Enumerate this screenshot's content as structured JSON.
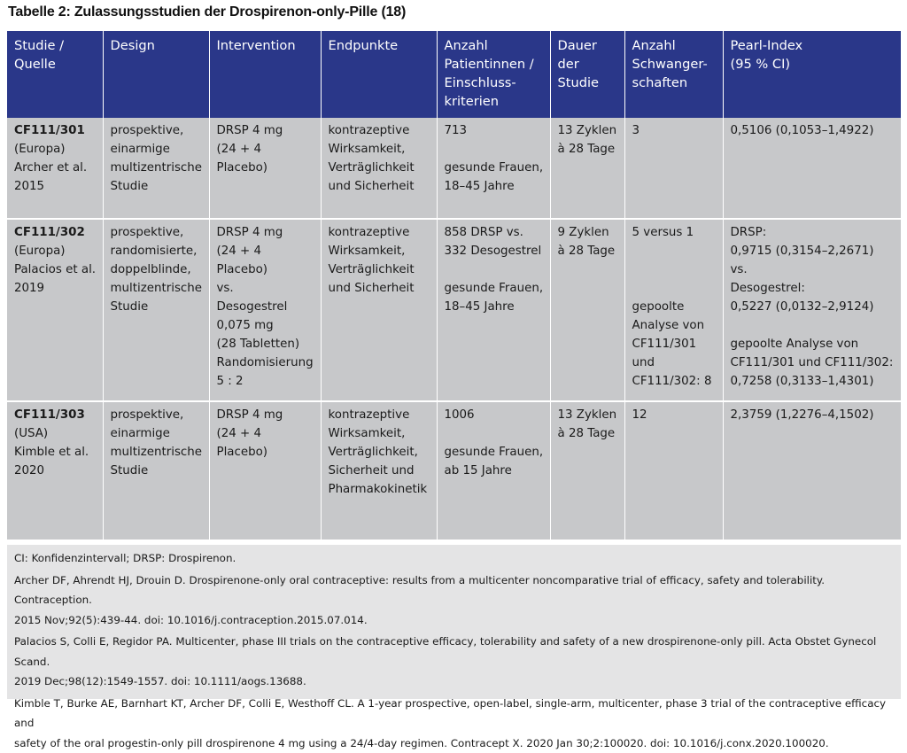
{
  "title": "Tabelle 2: Zulassungsstudien der Drospirenon-only-Pille (18)",
  "headers": {
    "c1": [
      "Studie /",
      "Quelle"
    ],
    "c2": [
      "Design"
    ],
    "c3": [
      "Intervention"
    ],
    "c4": [
      "Endpunkte"
    ],
    "c5": [
      "Anzahl",
      "Patientinnen /",
      "Einschluss-",
      "kriterien"
    ],
    "c6": [
      "Dauer",
      "der",
      "Studie"
    ],
    "c7": [
      "Anzahl",
      "Schwanger-",
      "schaften"
    ],
    "c8": [
      "Pearl-Index",
      "(95 % CI)"
    ]
  },
  "rows": [
    {
      "study_id": "CF111/301",
      "region": "(Europa)",
      "authors": "Archer et al.",
      "year": "2015",
      "design": [
        "prospektive,",
        "einarmige",
        "multizentrische",
        "Studie"
      ],
      "intervention": [
        "DRSP 4 mg",
        "(24 + 4 Placebo)"
      ],
      "endpoints": [
        "kontrazeptive",
        "Wirksamkeit,",
        "Verträglichkeit",
        "und Sicherheit"
      ],
      "patients_n": "713",
      "patients_criteria": [
        "gesunde Frauen,",
        "18–45 Jahre"
      ],
      "duration": [
        "13 Zyklen",
        "à 28 Tage"
      ],
      "pregnancies": "3",
      "pearl": "0,5106 (0,1053–1,4922)"
    },
    {
      "study_id": "CF111/302",
      "region": "(Europa)",
      "authors": "Palacios et al.",
      "year": "2019",
      "design": [
        "prospektive,",
        "randomisierte,",
        "doppelblinde,",
        "multizentrische",
        "Studie"
      ],
      "intervention": [
        "DRSP 4 mg",
        "(24 + 4 Placebo)",
        "vs.",
        "Desogestrel",
        "0,075 mg",
        "(28 Tabletten)",
        "Randomisierung",
        "5 : 2"
      ],
      "endpoints": [
        "kontrazeptive",
        "Wirksamkeit,",
        "Verträglichkeit",
        "und Sicherheit"
      ],
      "patients_n": [
        "858 DRSP vs.",
        "332 Desogestrel"
      ],
      "patients_criteria": [
        "gesunde Frauen,",
        "18–45 Jahre"
      ],
      "duration": [
        "9 Zyklen",
        "à 28 Tage"
      ],
      "pregnancies": "5 versus 1",
      "pregnancies_pooled": [
        "gepoolte",
        "Analyse von",
        "CF111/301",
        "und",
        "CF111/302: 8"
      ],
      "pearl": [
        "DRSP:",
        "0,9715 (0,3154–2,2671)",
        "vs.",
        "Desogestrel:",
        "0,5227 (0,0132–2,9124)"
      ],
      "pearl_pooled": [
        "gepoolte Analyse von",
        "CF111/301 und CF111/302:",
        "0,7258 (0,3133–1,4301)"
      ]
    },
    {
      "study_id": "CF111/303",
      "region": "(USA)",
      "authors": "Kimble et al.",
      "year": "2020",
      "design": [
        "prospektive,",
        "einarmige",
        "multizentrische",
        "Studie"
      ],
      "intervention": [
        "DRSP 4 mg",
        "(24 + 4 Placebo)"
      ],
      "endpoints": [
        "kontrazeptive",
        "Wirksamkeit,",
        "Verträglichkeit,",
        "Sicherheit und",
        "Pharmakokinetik"
      ],
      "patients_n": "1006",
      "patients_criteria": [
        "gesunde Frauen,",
        "ab 15 Jahre"
      ],
      "duration": [
        "13 Zyklen",
        "à 28 Tage"
      ],
      "pregnancies": "12",
      "pearl": "2,3759 (1,2276–4,1502)"
    }
  ],
  "footnotes": {
    "abbrev": "CI: Konfidenzintervall; DRSP: Drospirenon.",
    "ref1": [
      "Archer DF, Ahrendt HJ, Drouin D. Drospirenone-only oral contraceptive: results from a multicenter noncomparative trial of efficacy, safety and tolerability. Contraception.",
      "2015 Nov;92(5):439-44. doi: 10.1016/j.contraception.2015.07.014."
    ],
    "ref2": [
      "Palacios S, Colli E, Regidor PA. Multicenter, phase III trials on the contraceptive efficacy, tolerability and safety of a new drospirenone-only pill. Acta Obstet Gynecol Scand.",
      "2019 Dec;98(12):1549-1557. doi: 10.1111/aogs.13688."
    ],
    "ref3": [
      "Kimble T, Burke AE, Barnhart KT, Archer DF, Colli E, Westhoff CL. A 1-year prospective, open-label, single-arm, multicenter, phase 3 trial of the contraceptive efficacy and",
      "safety of the oral progestin-only pill drospirenone 4 mg using a 24/4-day regimen. Contracept X. 2020 Jan 30;2:100020. doi: 10.1016/j.conx.2020.100020."
    ]
  }
}
